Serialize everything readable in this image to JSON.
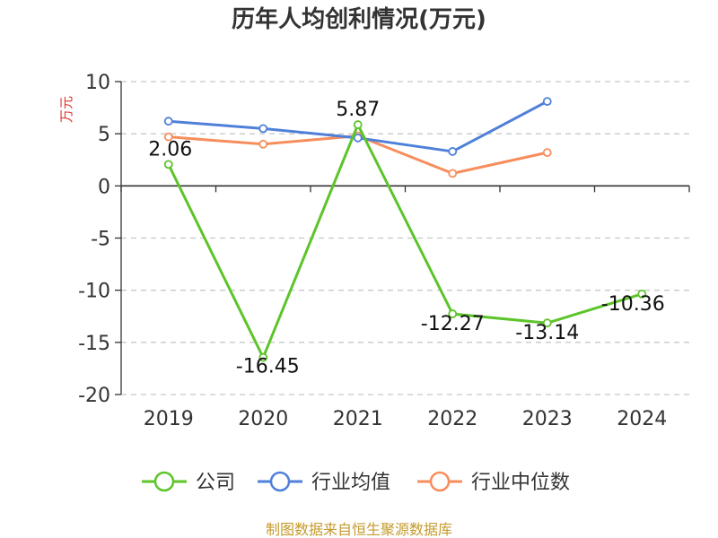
{
  "chart_data": {
    "type": "line",
    "title": "历年人均创利情况(万元)",
    "ylabel": "万元",
    "categories": [
      "2019",
      "2020",
      "2021",
      "2022",
      "2023",
      "2024"
    ],
    "ylim": [
      -20,
      10
    ],
    "yticks": [
      "10",
      "5",
      "0",
      "-5",
      "-10",
      "-15",
      "-20"
    ],
    "grid": true,
    "legend": "bottom",
    "series": [
      {
        "name": "公司",
        "color": "#5dc42a",
        "values": [
          2.06,
          -16.45,
          5.87,
          -12.27,
          -13.14,
          -10.36
        ],
        "labels": [
          "2.06",
          "-16.45",
          "5.87",
          "-12.27",
          "-13.14",
          "-10.36"
        ]
      },
      {
        "name": "行业均值",
        "color": "#4f80d9",
        "values": [
          6.2,
          5.5,
          4.6,
          3.3,
          8.1,
          null
        ]
      },
      {
        "name": "行业中位数",
        "color": "#f78d5c",
        "values": [
          4.7,
          4.0,
          4.8,
          1.2,
          3.2,
          null
        ]
      }
    ]
  },
  "source": {
    "text": "制图数据来自恒生聚源数据库",
    "color": "#c49a2c"
  },
  "ylabel_color": "#e0342d"
}
